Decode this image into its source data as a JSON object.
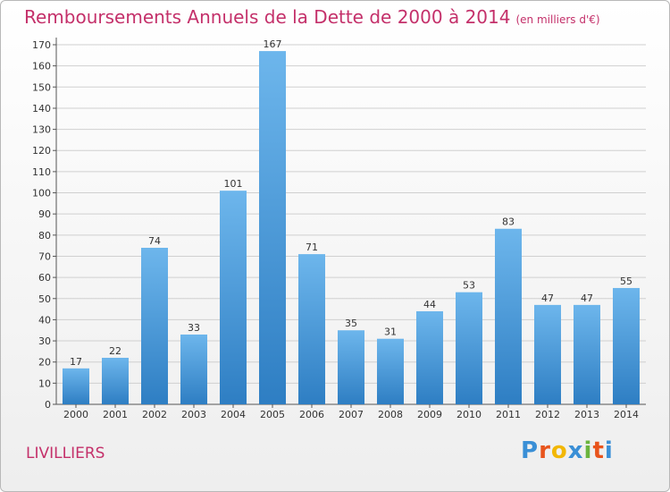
{
  "header": {
    "title": "Remboursements Annuels de la Dette de 2000 à 2014",
    "unit": "(en milliers d'€)"
  },
  "footer": {
    "commune": "LIVILLIERS",
    "logo": {
      "letters": [
        "P",
        "r",
        "o",
        "x",
        "i",
        "t",
        "i"
      ],
      "colors": [
        "#3a8fd6",
        "#e8541c",
        "#f2b705",
        "#3a8fd6",
        "#6ab43e",
        "#e8541c",
        "#3a8fd6"
      ]
    }
  },
  "colors": {
    "bar_light": "#6db6ec",
    "bar_dark": "#2e7ec3",
    "text": "#333333",
    "grid": "#d0d0d0",
    "accent": "#c4306a"
  },
  "chart_data": {
    "type": "bar",
    "title": "Remboursements Annuels de la Dette de 2000 à 2014",
    "subtitle": "(en milliers d'€)",
    "xlabel": "",
    "ylabel": "",
    "categories": [
      "2000",
      "2001",
      "2002",
      "2003",
      "2004",
      "2005",
      "2006",
      "2007",
      "2008",
      "2009",
      "2010",
      "2011",
      "2012",
      "2013",
      "2014"
    ],
    "values": [
      17,
      22,
      74,
      33,
      101,
      167,
      71,
      35,
      31,
      44,
      53,
      83,
      47,
      47,
      55
    ],
    "ylim": [
      0,
      170
    ],
    "yticks": [
      0,
      10,
      20,
      30,
      40,
      50,
      60,
      70,
      80,
      90,
      100,
      110,
      120,
      130,
      140,
      150,
      160,
      170
    ],
    "grid": true,
    "data_labels": true
  }
}
